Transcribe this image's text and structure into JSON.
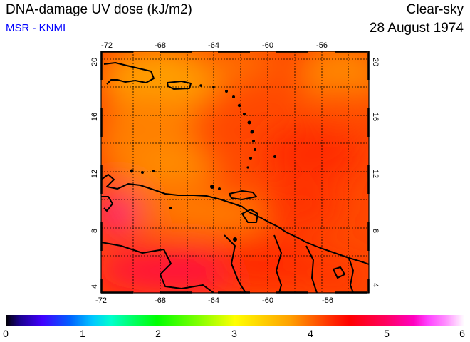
{
  "header": {
    "title": "DNA-damage UV dose (kJ/m2)",
    "source": "MSR - KNMI",
    "sky_condition": "Clear-sky",
    "date": "28 August 1974"
  },
  "map": {
    "lon_range": [
      -72,
      -53
    ],
    "lat_range": [
      3.5,
      20.5
    ],
    "lon_ticks": [
      "-72",
      "-68",
      "-64",
      "-60",
      "-56"
    ],
    "lat_ticks": [
      "4",
      "8",
      "12",
      "16",
      "20"
    ],
    "gridlines": true
  },
  "colorbar": {
    "ticks": [
      "0",
      "1",
      "2",
      "3",
      "4",
      "5",
      "6"
    ],
    "range": [
      0,
      6
    ]
  },
  "colors": {
    "coast": "#000000",
    "grid": "#000000",
    "source_text": "#0000ff"
  }
}
